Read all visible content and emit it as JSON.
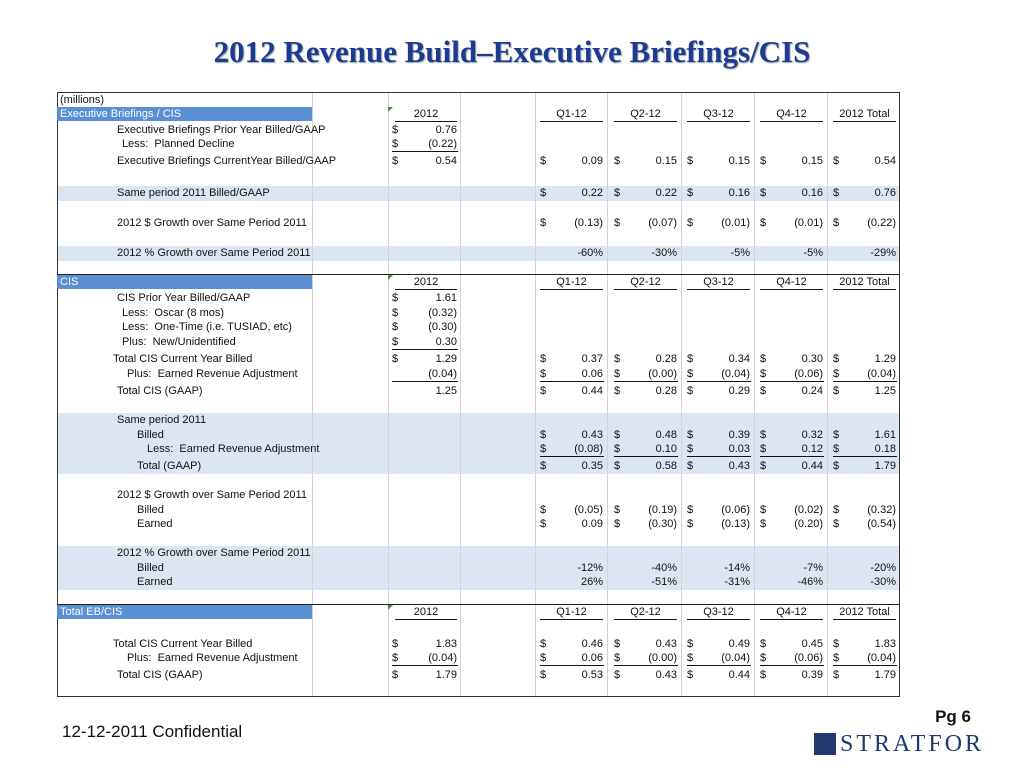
{
  "title": "2012 Revenue Build–Executive Briefings/CIS",
  "table": {
    "unit_note": "(millions)",
    "currency": "$",
    "sections": [
      {
        "name": "Executive Briefings / CIS",
        "columns": [
          "2012",
          "Q1-12",
          "Q2-12",
          "Q3-12",
          "Q4-12",
          "2012 Total"
        ],
        "rows": [
          {
            "label": "Executive Briefings Prior Year Billed/GAAP",
            "values": [
              "0.76",
              null,
              null,
              null,
              null,
              null
            ]
          },
          {
            "label": "Less:  Planned Decline",
            "values": [
              "(0.22)",
              null,
              null,
              null,
              null,
              null
            ]
          },
          {
            "label": "Executive Briefings CurrentYear Billed/GAAP",
            "values": [
              "0.54",
              "0.09",
              "0.15",
              "0.15",
              "0.15",
              "0.54"
            ]
          },
          {
            "label": "Same period 2011 Billed/GAAP",
            "values": [
              null,
              "0.22",
              "0.22",
              "0.16",
              "0.16",
              "0.76"
            ]
          },
          {
            "label": "2012 $ Growth over Same Period 2011",
            "values": [
              null,
              "(0.13)",
              "(0.07)",
              "(0.01)",
              "(0.01)",
              "(0.22)"
            ]
          },
          {
            "label": "2012 % Growth over Same Period 2011",
            "values": [
              null,
              "-60%",
              "-30%",
              "-5%",
              "-5%",
              "-29%"
            ]
          }
        ]
      },
      {
        "name": "CIS",
        "columns": [
          "2012",
          "Q1-12",
          "Q2-12",
          "Q3-12",
          "Q4-12",
          "2012 Total"
        ],
        "rows": [
          {
            "label": "CIS Prior Year Billed/GAAP",
            "values": [
              "1.61",
              null,
              null,
              null,
              null,
              null
            ]
          },
          {
            "label": "Less:  Oscar (8 mos)",
            "values": [
              "(0.32)",
              null,
              null,
              null,
              null,
              null
            ]
          },
          {
            "label": "Less:  One-Time (i.e. TUSIAD, etc)",
            "values": [
              "(0.30)",
              null,
              null,
              null,
              null,
              null
            ]
          },
          {
            "label": "Plus:  New/Unidentified",
            "values": [
              "0.30",
              null,
              null,
              null,
              null,
              null
            ]
          },
          {
            "label": "Total CIS Current Year Billed",
            "values": [
              "1.29",
              "0.37",
              "0.28",
              "0.34",
              "0.30",
              "1.29"
            ]
          },
          {
            "label": "Plus:  Earned Revenue Adjustment",
            "values": [
              "(0.04)",
              "0.06",
              "(0.00)",
              "(0.04)",
              "(0.06)",
              "(0.04)"
            ]
          },
          {
            "label": "Total CIS (GAAP)",
            "values": [
              "1.25",
              "0.44",
              "0.28",
              "0.29",
              "0.24",
              "1.25"
            ]
          },
          {
            "label": "Same period 2011"
          },
          {
            "label": "Billed",
            "values": [
              null,
              "0.43",
              "0.48",
              "0.39",
              "0.32",
              "1.61"
            ]
          },
          {
            "label": "Less:  Earned Revenue Adjustment",
            "values": [
              null,
              "(0.08)",
              "0.10",
              "0.03",
              "0.12",
              "0.18"
            ]
          },
          {
            "label": "Total (GAAP)",
            "values": [
              null,
              "0.35",
              "0.58",
              "0.43",
              "0.44",
              "1.79"
            ]
          },
          {
            "label": "2012 $ Growth over Same Period 2011"
          },
          {
            "label": "Billed",
            "values": [
              null,
              "(0.05)",
              "(0.19)",
              "(0.06)",
              "(0.02)",
              "(0.32)"
            ]
          },
          {
            "label": "Earned",
            "values": [
              null,
              "0.09",
              "(0.30)",
              "(0.13)",
              "(0.20)",
              "(0.54)"
            ]
          },
          {
            "label": "2012 % Growth over Same Period 2011"
          },
          {
            "label": "Billed",
            "values": [
              null,
              "-12%",
              "-40%",
              "-14%",
              "-7%",
              "-20%"
            ]
          },
          {
            "label": "Earned",
            "values": [
              null,
              "26%",
              "-51%",
              "-31%",
              "-46%",
              "-30%"
            ]
          }
        ]
      },
      {
        "name": "Total EB/CIS",
        "columns": [
          "2012",
          "Q1-12",
          "Q2-12",
          "Q3-12",
          "Q4-12",
          "2012 Total"
        ],
        "rows": [
          {
            "label": "Total CIS Current Year Billed",
            "values": [
              "1.83",
              "0.46",
              "0.43",
              "0.49",
              "0.45",
              "1.83"
            ]
          },
          {
            "label": "Plus:  Earned Revenue Adjustment",
            "values": [
              "(0.04)",
              "0.06",
              "(0.00)",
              "(0.04)",
              "(0.06)",
              "(0.04)"
            ]
          },
          {
            "label": "Total CIS (GAAP)",
            "values": [
              "1.79",
              "0.53",
              "0.43",
              "0.44",
              "0.39",
              "1.79"
            ]
          }
        ]
      }
    ]
  },
  "footer": {
    "text": "12-12-2011 Confidential",
    "page": "Pg 6",
    "logo": "STRATFOR"
  }
}
